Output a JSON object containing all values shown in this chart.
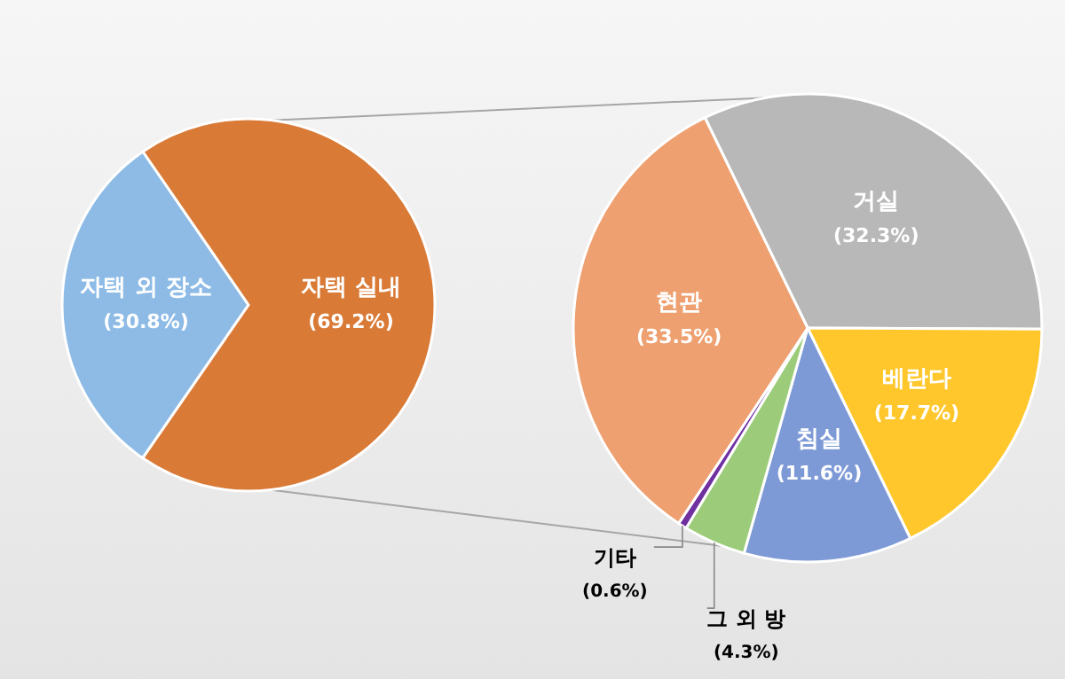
{
  "chart_data": [
    {
      "type": "pie",
      "categories": [
        "자택 외 장소",
        "자택 실내"
      ],
      "values": [
        30.8,
        69.2
      ],
      "colors": [
        "#8dbbe6",
        "#d97a36"
      ],
      "value_labels": [
        "(30.8%)",
        "(69.2%)"
      ]
    },
    {
      "type": "pie",
      "categories": [
        "거실",
        "베란다",
        "침실",
        "그 외 방",
        "기타",
        "현관"
      ],
      "values": [
        32.3,
        17.7,
        11.6,
        4.3,
        0.6,
        33.5
      ],
      "colors": [
        "#b8b8b8",
        "#ffc72c",
        "#7e9ad6",
        "#9ccc7a",
        "#7030a0",
        "#eea070"
      ],
      "value_labels": [
        "(32.3%)",
        "(17.7%)",
        "(11.6%)",
        "(4.3%)",
        "(0.6%)",
        "(33.5%)"
      ]
    }
  ]
}
